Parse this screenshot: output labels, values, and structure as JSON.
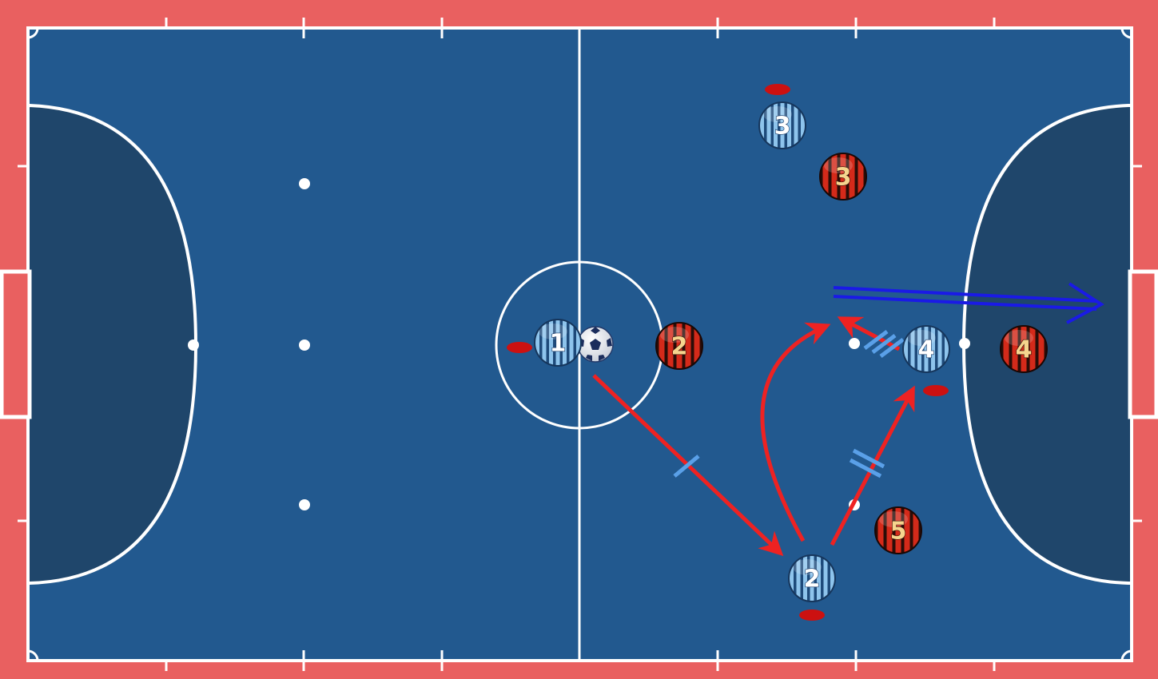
{
  "colors": {
    "border": "#e96060",
    "court": "#22598f",
    "penalty_area": "#1f466b",
    "lines": "#ffffff",
    "team_blue_stripe": "#8ec4ec",
    "team_blue_dark": "#1e4a7a",
    "team_red": "#d42a1a",
    "team_red_dark": "#2a0d08",
    "pass_arrow": "#ee2222",
    "run_arrow": "#1a1ae6",
    "pass_marker": "#5aa0e8",
    "cone": "#cc1111"
  },
  "icons": {
    "ball": "soccer-ball-icon",
    "cone": "cone-icon"
  },
  "players_blue": [
    {
      "id": "blue-1",
      "label": "1"
    },
    {
      "id": "blue-2",
      "label": "2"
    },
    {
      "id": "blue-3",
      "label": "3"
    },
    {
      "id": "blue-4",
      "label": "4"
    }
  ],
  "players_red": [
    {
      "id": "red-2",
      "label": "2"
    },
    {
      "id": "red-3",
      "label": "3"
    },
    {
      "id": "red-4",
      "label": "4"
    },
    {
      "id": "red-5",
      "label": "5"
    }
  ],
  "actions": [
    {
      "type": "pass",
      "from": "blue-1",
      "to": "blue-2",
      "sequence": 1
    },
    {
      "type": "pass",
      "from": "blue-2",
      "to": "blue-4",
      "sequence": 2
    },
    {
      "type": "pass",
      "from": "blue-4",
      "to": "space",
      "sequence": 3
    },
    {
      "type": "run",
      "from": "blue-2",
      "to": "space",
      "path": "curved"
    },
    {
      "type": "run",
      "from": "space",
      "to": "goal",
      "style": "double-line"
    }
  ]
}
